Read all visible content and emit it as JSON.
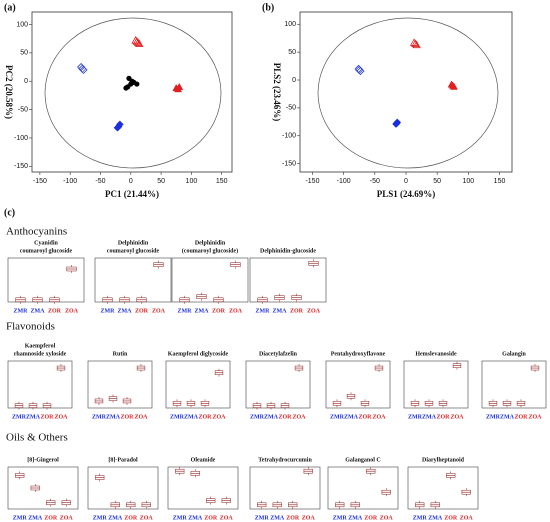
{
  "panel_labels": [
    "(a)",
    "(b)",
    "(c)"
  ],
  "chart_data": [
    {
      "type": "scatter",
      "xlabel": "PC1 (21.44%)",
      "ylabel": "PC2 (20.58%)",
      "xlim": [
        -163,
        167
      ],
      "ylim": [
        -160,
        122
      ],
      "xticks": [
        -150,
        -100,
        -50,
        0,
        50,
        100,
        150
      ],
      "yticks": [
        100,
        50,
        0,
        -50,
        -100,
        -150
      ],
      "series": [
        {
          "color": "#2a3fc8",
          "marker": "diamond-open",
          "x": [
            -82,
            -78,
            -80
          ],
          "values": [
            25,
            20,
            22
          ]
        },
        {
          "color": "#e02020",
          "marker": "triangle-open",
          "x": [
            8,
            12,
            10,
            14
          ],
          "values": [
            72,
            68,
            70,
            66
          ]
        },
        {
          "color": "#000000",
          "marker": "circle",
          "x": [
            -5,
            0,
            -8,
            5,
            10,
            -3,
            2
          ],
          "values": [
            -10,
            -5,
            -12,
            -2,
            -5,
            5,
            0
          ]
        },
        {
          "color": "#e02020",
          "marker": "triangle",
          "x": [
            75,
            80,
            78
          ],
          "values": [
            -12,
            -10,
            -14
          ]
        },
        {
          "color": "#1a2fe0",
          "marker": "diamond",
          "x": [
            -20,
            -18,
            -22
          ],
          "values": [
            -80,
            -76,
            -82
          ]
        }
      ]
    },
    {
      "type": "scatter",
      "xlabel": "PLS1 (24.69%)",
      "ylabel": "PLS2 (23.46%)",
      "xlim": [
        -170,
        170
      ],
      "ylim": [
        -165,
        122
      ],
      "xticks": [
        -150,
        -100,
        -50,
        0,
        50,
        100,
        150
      ],
      "yticks": [
        100,
        50,
        0,
        -50,
        -100,
        -150
      ],
      "series": [
        {
          "color": "#2a3fc8",
          "marker": "diamond-open",
          "x": [
            -76,
            -73,
            -75
          ],
          "values": [
            20,
            16,
            18
          ]
        },
        {
          "color": "#e02020",
          "marker": "triangle-open",
          "x": [
            13,
            17,
            15
          ],
          "values": [
            67,
            63,
            65
          ]
        },
        {
          "color": "#e02020",
          "marker": "triangle",
          "x": [
            73,
            77,
            75
          ],
          "values": [
            -8,
            -12,
            -10
          ]
        },
        {
          "color": "#1a2fe0",
          "marker": "diamond",
          "x": [
            -16,
            -14,
            -15
          ],
          "values": [
            -79,
            -76,
            -78
          ]
        }
      ]
    }
  ],
  "sections": [
    {
      "title": "Anthocyanins",
      "charts": [
        {
          "type": "box",
          "title": [
            "Cyanidin",
            "coumaroyl glucoside"
          ],
          "categories": [
            "ZMR",
            "ZMA",
            "ZOR",
            "ZOA"
          ],
          "colors": [
            "#1a2fe0",
            "#1a2fe0",
            "#e02020",
            "#e02020"
          ],
          "ylim": [
            0,
            1
          ],
          "values": [
            0.05,
            0.05,
            0.05,
            0.75
          ]
        },
        {
          "type": "box",
          "title": [
            "Delphinidin",
            "coumaroyl glucoside"
          ],
          "categories": [
            "ZMR",
            "ZMA",
            "ZOR",
            "ZOA"
          ],
          "colors": [
            "#1a2fe0",
            "#1a2fe0",
            "#e02020",
            "#e02020"
          ],
          "ylim": [
            0,
            1
          ],
          "values": [
            0.05,
            0.05,
            0.05,
            0.85
          ]
        },
        {
          "type": "box",
          "title": [
            "Delphinidin",
            "(coumaroyl glucoside)"
          ],
          "categories": [
            "ZMR",
            "ZMA",
            "ZOR",
            "ZOA"
          ],
          "colors": [
            "#1a2fe0",
            "#1a2fe0",
            "#e02020",
            "#e02020"
          ],
          "ylim": [
            0,
            1
          ],
          "values": [
            0.05,
            0.12,
            0.05,
            0.85
          ]
        },
        {
          "type": "box",
          "title": [
            "Delphinidin-glucoside"
          ],
          "categories": [
            "ZMR",
            "ZMA",
            "ZOR",
            "ZOA"
          ],
          "colors": [
            "#1a2fe0",
            "#1a2fe0",
            "#e02020",
            "#e02020"
          ],
          "ylim": [
            0,
            1
          ],
          "values": [
            0.05,
            0.1,
            0.1,
            0.88
          ]
        }
      ]
    },
    {
      "title": "Flavonoids",
      "charts": [
        {
          "type": "box",
          "title": [
            "Kaempferol",
            "rhamnoside xyloside"
          ],
          "categories": [
            "ZMR",
            "ZMA",
            "ZOR",
            "ZOA"
          ],
          "colors": [
            "#1a2fe0",
            "#1a2fe0",
            "#e02020",
            "#e02020"
          ],
          "ylim": [
            0,
            1
          ],
          "values": [
            0.05,
            0.05,
            0.05,
            0.85
          ]
        },
        {
          "type": "box",
          "title": [
            "Rutin"
          ],
          "categories": [
            "ZMR",
            "ZMA",
            "ZOR",
            "ZOA"
          ],
          "colors": [
            "#1a2fe0",
            "#1a2fe0",
            "#e02020",
            "#e02020"
          ],
          "ylim": [
            0,
            1
          ],
          "values": [
            0.15,
            0.2,
            0.15,
            0.85
          ]
        },
        {
          "type": "box",
          "title": [
            "Kaempferol diglycoside"
          ],
          "categories": [
            "ZMR",
            "ZMA",
            "ZOR",
            "ZOA"
          ],
          "colors": [
            "#1a2fe0",
            "#1a2fe0",
            "#e02020",
            "#e02020"
          ],
          "ylim": [
            0,
            1
          ],
          "values": [
            0.1,
            0.1,
            0.1,
            0.75
          ]
        },
        {
          "type": "box",
          "title": [
            "Diacetylafzelin"
          ],
          "categories": [
            "ZMR",
            "ZMA",
            "ZOR",
            "ZOA"
          ],
          "colors": [
            "#1a2fe0",
            "#1a2fe0",
            "#e02020",
            "#e02020"
          ],
          "ylim": [
            0,
            1
          ],
          "values": [
            0.05,
            0.05,
            0.05,
            0.85
          ]
        },
        {
          "type": "box",
          "title": [
            "Pentahydroxyflavone"
          ],
          "categories": [
            "ZMR",
            "ZMA",
            "ZOR",
            "ZOA"
          ],
          "colors": [
            "#1a2fe0",
            "#1a2fe0",
            "#e02020",
            "#e02020"
          ],
          "ylim": [
            0,
            1
          ],
          "values": [
            0.1,
            0.25,
            0.1,
            0.85
          ]
        },
        {
          "type": "box",
          "title": [
            "Hemslevanoside"
          ],
          "categories": [
            "ZMR",
            "ZMA",
            "ZOR",
            "ZOA"
          ],
          "colors": [
            "#1a2fe0",
            "#1a2fe0",
            "#e02020",
            "#e02020"
          ],
          "ylim": [
            0,
            1
          ],
          "values": [
            0.1,
            0.1,
            0.1,
            0.9
          ]
        },
        {
          "type": "box",
          "title": [
            "Galangin"
          ],
          "categories": [
            "ZMR",
            "ZMA",
            "ZOR",
            "ZOA"
          ],
          "colors": [
            "#1a2fe0",
            "#1a2fe0",
            "#e02020",
            "#e02020"
          ],
          "ylim": [
            0,
            1
          ],
          "values": [
            0.1,
            0.1,
            0.1,
            0.85
          ]
        }
      ]
    },
    {
      "title": "Oils & Others",
      "charts": [
        {
          "type": "box",
          "title": [
            "[8]-Gingerol"
          ],
          "categories": [
            "ZMR",
            "ZMA",
            "ZOR",
            "ZOA"
          ],
          "colors": [
            "#1a2fe0",
            "#1a2fe0",
            "#e02020",
            "#e02020"
          ],
          "ylim": [
            0,
            1
          ],
          "values": [
            0.8,
            0.5,
            0.15,
            0.15
          ]
        },
        {
          "type": "box",
          "title": [
            "[8]-Paradol"
          ],
          "categories": [
            "ZMR",
            "ZMA",
            "ZOR",
            "ZOA"
          ],
          "colors": [
            "#1a2fe0",
            "#1a2fe0",
            "#e02020",
            "#e02020"
          ],
          "ylim": [
            0,
            1
          ],
          "values": [
            0.75,
            0.1,
            0.1,
            0.1
          ]
        },
        {
          "type": "box",
          "title": [
            "Oleamide"
          ],
          "categories": [
            "ZMR",
            "ZMA",
            "ZOR",
            "ZOA"
          ],
          "colors": [
            "#1a2fe0",
            "#1a2fe0",
            "#e02020",
            "#e02020"
          ],
          "ylim": [
            0,
            1
          ],
          "values": [
            0.9,
            0.85,
            0.2,
            0.2
          ]
        },
        {
          "type": "box",
          "title": [
            "Tetrahydrocurcumin"
          ],
          "categories": [
            "ZMR",
            "ZMA",
            "ZOR",
            "ZOA"
          ],
          "colors": [
            "#1a2fe0",
            "#1a2fe0",
            "#e02020",
            "#e02020"
          ],
          "ylim": [
            0,
            1
          ],
          "values": [
            0.1,
            0.1,
            0.1,
            0.9
          ]
        },
        {
          "type": "box",
          "title": [
            "Galanganol C"
          ],
          "categories": [
            "ZMR",
            "ZMA",
            "ZOR",
            "ZOA"
          ],
          "colors": [
            "#1a2fe0",
            "#1a2fe0",
            "#e02020",
            "#e02020"
          ],
          "ylim": [
            0,
            1
          ],
          "values": [
            0.1,
            0.1,
            0.9,
            0.4
          ]
        },
        {
          "type": "box",
          "title": [
            "Diarylheptanoid"
          ],
          "categories": [
            "ZMR",
            "ZMA",
            "ZOR",
            "ZOA"
          ],
          "colors": [
            "#1a2fe0",
            "#1a2fe0",
            "#e02020",
            "#e02020"
          ],
          "ylim": [
            0,
            1
          ],
          "values": [
            0.1,
            0.1,
            0.8,
            0.4
          ]
        }
      ]
    }
  ]
}
